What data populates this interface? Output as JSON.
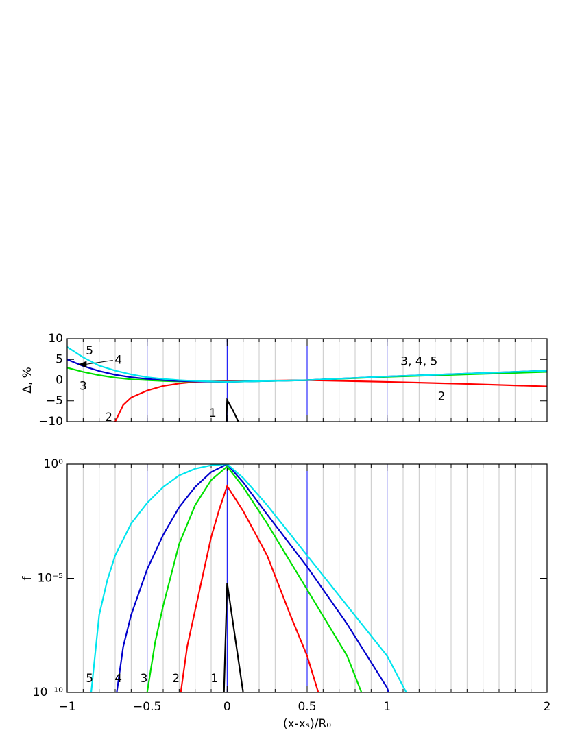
{
  "chart_data": [
    {
      "type": "line",
      "y_label": "Δ, %",
      "xlim": [
        -1,
        2
      ],
      "ylim": [
        -10,
        10
      ],
      "xticks": [
        -1,
        -0.5,
        0,
        0.5,
        1,
        2
      ],
      "yticks": [
        10,
        5,
        0,
        {
          "value": -5,
          "label": "−5"
        },
        {
          "value": -10,
          "label": "−10"
        }
      ],
      "minor_grid_step": 0.1,
      "minor_grid_color": "#c8c8c8",
      "vlines": {
        "values": [
          -0.5,
          0,
          0.5,
          1
        ],
        "color": "#0000ff"
      },
      "series": [
        {
          "color": "#000000",
          "x": [
            -0.005,
            0,
            0.035,
            0.07
          ],
          "values": [
            -10,
            -4.8,
            -7.2,
            -10
          ]
        },
        {
          "color": "#ff0000",
          "x": [
            -0.7,
            -0.65,
            -0.6,
            -0.5,
            -0.4,
            -0.3,
            -0.2,
            0,
            0.5,
            1,
            1.5,
            2
          ],
          "values": [
            -10,
            -6,
            -4.2,
            -2.5,
            -1.4,
            -0.8,
            -0.4,
            -0.2,
            0,
            -0.4,
            -0.9,
            -1.5
          ]
        },
        {
          "color": "#00e000",
          "x": [
            -1,
            -0.9,
            -0.8,
            -0.7,
            -0.6,
            -0.5,
            -0.4,
            -0.3,
            -0.2,
            0,
            0.5,
            1,
            1.5,
            2
          ],
          "values": [
            3,
            2,
            1.2,
            0.6,
            0.2,
            0,
            -0.2,
            -0.3,
            -0.3,
            -0.4,
            0,
            0.8,
            1.4,
            2
          ]
        },
        {
          "color": "#0000cc",
          "x": [
            -1,
            -0.9,
            -0.8,
            -0.7,
            -0.6,
            -0.5,
            -0.4,
            -0.3,
            -0.2,
            0,
            0.5,
            1,
            1.5,
            2
          ],
          "values": [
            5,
            3.4,
            2.2,
            1.3,
            0.7,
            0.3,
            0,
            -0.2,
            -0.3,
            -0.4,
            0,
            0.9,
            1.6,
            2.3
          ]
        },
        {
          "color": "#00e5ee",
          "x": [
            -1,
            -0.9,
            -0.8,
            -0.7,
            -0.6,
            -0.5,
            -0.4,
            -0.3,
            -0.2,
            0,
            0.5,
            1,
            1.5,
            2
          ],
          "values": [
            8,
            5.5,
            3.5,
            2.3,
            1.4,
            0.7,
            0.3,
            0,
            -0.2,
            -0.4,
            0,
            0.9,
            1.6,
            2.3
          ]
        }
      ],
      "annotations": [
        {
          "text": "5",
          "x": -0.86,
          "y": 7
        },
        {
          "text": "4",
          "x": -0.68,
          "y": 4.8,
          "arrow_to": [
            -0.93,
            3.8
          ]
        },
        {
          "text": "3",
          "x": -0.9,
          "y": -1.5
        },
        {
          "text": "2",
          "x": -0.74,
          "y": -9
        },
        {
          "text": "1",
          "x": -0.09,
          "y": -8
        },
        {
          "text": "3, 4, 5",
          "x": 1.2,
          "y": 4.5
        },
        {
          "text": "2",
          "x": 1.34,
          "y": -4
        }
      ]
    },
    {
      "type": "line",
      "x_label": "(x-xₛ)/R₀",
      "y_label": "f",
      "xlim": [
        -1,
        2
      ],
      "ylim": [
        1e-10,
        1
      ],
      "log_y": true,
      "xticks": [
        {
          "value": -1,
          "label": "−1"
        },
        {
          "value": -0.5,
          "label": "−0.5"
        },
        0,
        0.5,
        1,
        2
      ],
      "yticks": [
        {
          "value": 1,
          "label": "10⁰"
        },
        {
          "value": 1e-05,
          "label": "10⁻⁵"
        },
        {
          "value": 1e-10,
          "label": "10⁻¹⁰"
        }
      ],
      "minor_grid_step": 0.1,
      "minor_grid_color": "#c8c8c8",
      "vlines": {
        "values": [
          -0.5,
          0,
          0.5,
          1
        ],
        "color": "#0000ff"
      },
      "series": [
        {
          "color": "#000000",
          "x": [
            -0.02,
            0,
            0.1
          ],
          "values": [
            1e-10,
            6.3e-06,
            1e-10
          ]
        },
        {
          "color": "#ff0000",
          "x": [
            -0.29,
            -0.25,
            -0.2,
            -0.1,
            -0.05,
            0,
            0.1,
            0.25,
            0.4,
            0.5,
            0.57
          ],
          "values": [
            1e-10,
            1e-08,
            4e-07,
            0.00063,
            0.01,
            0.11,
            0.0089,
            0.0001,
            2e-07,
            4e-09,
            1e-10
          ]
        },
        {
          "color": "#00e000",
          "x": [
            -0.5,
            -0.45,
            -0.4,
            -0.3,
            -0.2,
            -0.1,
            0,
            0.1,
            0.25,
            0.5,
            0.75,
            0.84
          ],
          "values": [
            1e-10,
            1.6e-08,
            6.3e-07,
            0.00032,
            0.016,
            0.2,
            0.79,
            0.1,
            0.0025,
            3.2e-06,
            4e-09,
            1e-10
          ]
        },
        {
          "color": "#0000cc",
          "x": [
            -0.69,
            -0.65,
            -0.6,
            -0.5,
            -0.4,
            -0.3,
            -0.2,
            -0.1,
            0,
            0.1,
            0.25,
            0.5,
            0.75,
            1,
            1.01
          ],
          "values": [
            1e-10,
            1e-08,
            2.5e-07,
            2.5e-05,
            0.00079,
            0.013,
            0.1,
            0.45,
            1,
            0.16,
            0.0063,
            3.2e-05,
            1e-07,
            1.6e-10,
            1e-10
          ]
        },
        {
          "color": "#00e5ee",
          "x": [
            -0.85,
            -0.8,
            -0.75,
            -0.7,
            -0.6,
            -0.5,
            -0.4,
            -0.3,
            -0.2,
            -0.1,
            0,
            0.1,
            0.25,
            0.5,
            0.75,
            1,
            1.12
          ],
          "values": [
            1e-10,
            2.5e-07,
            7.9e-06,
            0.0001,
            0.0025,
            0.02,
            0.1,
            0.32,
            0.63,
            0.89,
            1,
            0.25,
            0.016,
            0.0001,
            6.3e-07,
            4e-09,
            1e-10
          ]
        }
      ],
      "annotations": [
        {
          "text": "5",
          "x": -0.86,
          "y": 4e-10
        },
        {
          "text": "4",
          "x": -0.68,
          "y": 4e-10
        },
        {
          "text": "3",
          "x": -0.52,
          "y": 4e-10
        },
        {
          "text": "2",
          "x": -0.32,
          "y": 4e-10
        },
        {
          "text": "1",
          "x": -0.08,
          "y": 4e-10
        }
      ]
    }
  ]
}
